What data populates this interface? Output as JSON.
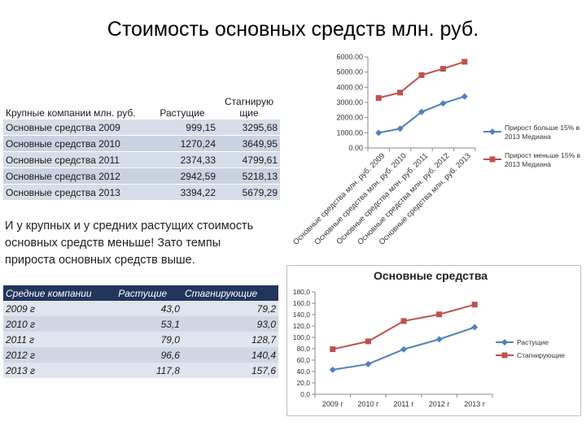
{
  "slide_title": "Стоимость основных средств млн. руб.",
  "large_table": {
    "header": [
      "Крупные компании млн. руб.",
      "Растущие",
      "Стагнирую щие"
    ],
    "rows": [
      {
        "label": "Основные средства 2009",
        "growing": "999,15",
        "stagnant": "3295,68"
      },
      {
        "label": "Основные средства 2010",
        "growing": "1270,24",
        "stagnant": "3649,95"
      },
      {
        "label": "Основные средства 2011",
        "growing": "2374,33",
        "stagnant": "4799,61"
      },
      {
        "label": "Основные средства 2012",
        "growing": "2942,59",
        "stagnant": "5218,13"
      },
      {
        "label": "Основные средства 2013",
        "growing": "3394,22",
        "stagnant": "5679,29"
      }
    ]
  },
  "conclusion_text": "И у крупных и у средних растущих стоимость основных средств меньше! Зато темпы прироста основных средств выше.",
  "medium_table": {
    "header": [
      "Средние компании",
      "Растущие",
      "Стагнирующие"
    ],
    "rows": [
      {
        "label": "2009 г",
        "growing": "43,0",
        "stagnant": "79,2"
      },
      {
        "label": "2010 г",
        "growing": "53,1",
        "stagnant": "93,0"
      },
      {
        "label": "2011 г",
        "growing": "79,0",
        "stagnant": "128,7"
      },
      {
        "label": "2012 г",
        "growing": "96,6",
        "stagnant": "140,4"
      },
      {
        "label": "2013 г",
        "growing": "117,8",
        "stagnant": "157,6"
      }
    ]
  },
  "colors": {
    "growing": "#4f81bd",
    "stagnant": "#c0504d",
    "table_header": "#22355d"
  },
  "chart_data": [
    {
      "type": "line",
      "title": "",
      "categories": [
        "Основные средства млн. руб. 2009",
        "Основные средства млн. руб. 2010",
        "Основные средства млн. руб. 2011",
        "Основные средства млн. руб. 2012",
        "Основные средства млн. руб. 2013"
      ],
      "series": [
        {
          "name": "Прирост больше 15% в 2013 Медиана",
          "values": [
            999.15,
            1270.24,
            2374.33,
            2942.59,
            3394.22
          ],
          "color": "#4f81bd",
          "marker": "diamond"
        },
        {
          "name": "Прирост меньше 15% в 2013 Медиана",
          "values": [
            3295.68,
            3649.95,
            4799.61,
            5218.13,
            5679.29
          ],
          "color": "#c0504d",
          "marker": "square"
        }
      ],
      "ylim": [
        0,
        6000
      ],
      "yticks": [
        "0.00",
        "1000.00",
        "2000.00",
        "3000.00",
        "4000.00",
        "5000.00",
        "6000.00"
      ],
      "legend": "right",
      "grid": false
    },
    {
      "type": "line",
      "title": "Основные средства",
      "categories": [
        "2009 г",
        "2010 г",
        "2011 г",
        "2012 г",
        "2013 г"
      ],
      "series": [
        {
          "name": "Растущие",
          "values": [
            43.0,
            53.1,
            79.0,
            96.6,
            117.8
          ],
          "color": "#4f81bd",
          "marker": "diamond"
        },
        {
          "name": "Стагнирующие",
          "values": [
            79.2,
            93.0,
            128.7,
            140.4,
            157.6
          ],
          "color": "#c0504d",
          "marker": "square"
        }
      ],
      "ylim": [
        0,
        180
      ],
      "yticks": [
        "0,0",
        "20,0",
        "40,0",
        "60,0",
        "80,0",
        "100,0",
        "120,0",
        "140,0",
        "160,0",
        "180,0"
      ],
      "legend": "right",
      "grid": false
    }
  ]
}
